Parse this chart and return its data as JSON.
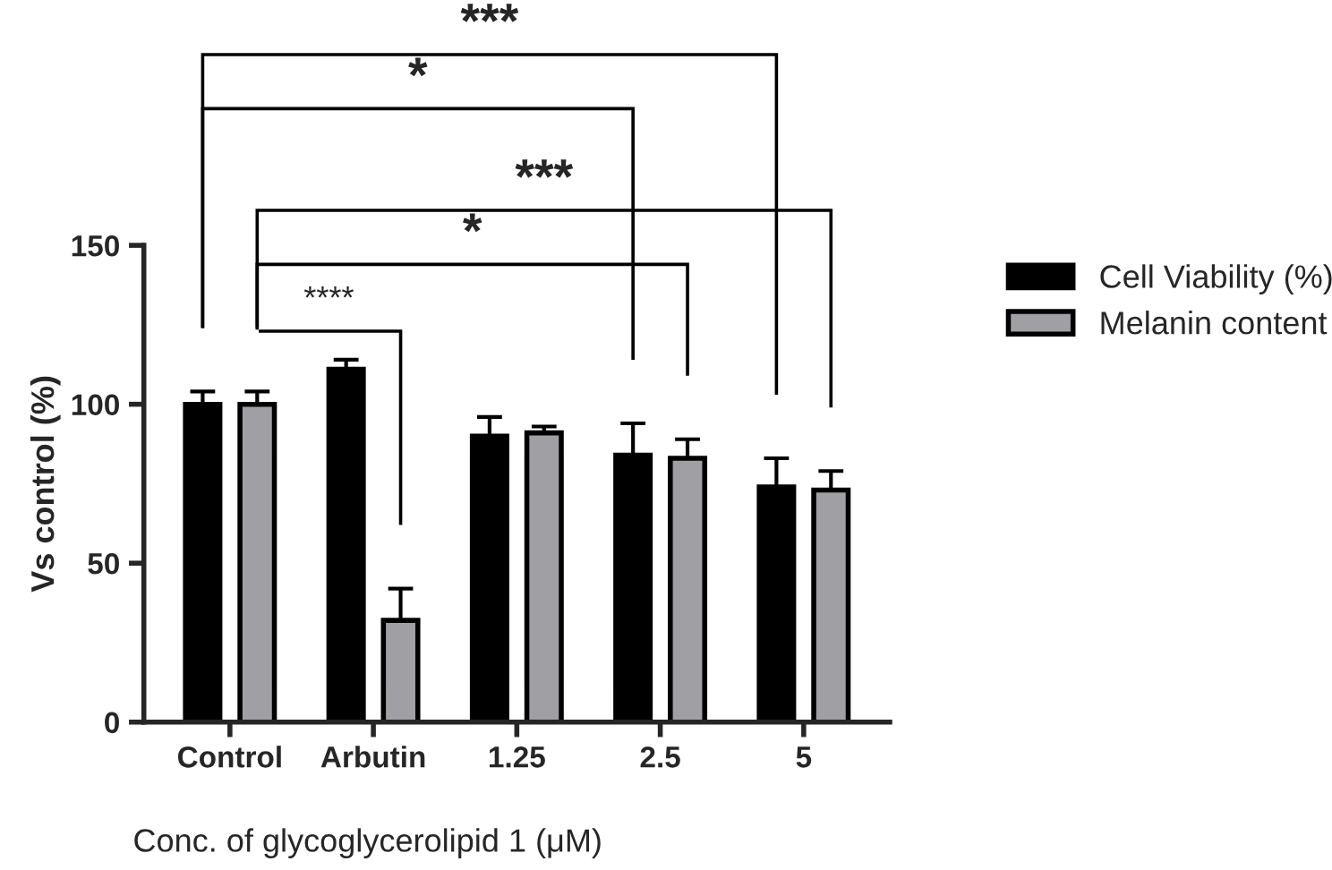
{
  "chart_data": {
    "type": "bar",
    "xlabel": "Conc. of glycoglycerolipid 1 (μM)",
    "ylabel": "Vs control (%)",
    "categories": [
      "Control",
      "Arbutin",
      "1.25",
      "2.5",
      "5"
    ],
    "series": [
      {
        "name": "Cell Viability (%)",
        "color": "#000000",
        "values": [
          100,
          111,
          90,
          84,
          74
        ],
        "errors": [
          4,
          3,
          6,
          10,
          9
        ]
      },
      {
        "name": "Melanin content",
        "color": "#a0a0a4",
        "values": [
          100,
          32,
          91,
          83,
          73
        ],
        "errors": [
          4,
          10,
          2,
          6,
          6
        ]
      }
    ],
    "ylim": [
      0,
      150
    ],
    "yticks": [
      0,
      50,
      100,
      150
    ],
    "annotations": [
      "***",
      "*",
      "***",
      "*",
      "****"
    ],
    "legend": "right",
    "grid": false
  }
}
